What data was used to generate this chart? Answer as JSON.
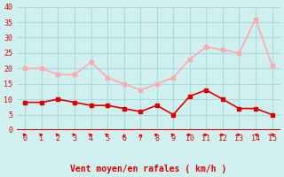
{
  "x": [
    0,
    1,
    2,
    3,
    4,
    5,
    6,
    7,
    8,
    9,
    10,
    11,
    12,
    13,
    14,
    15
  ],
  "wind_avg": [
    9,
    9,
    10,
    9,
    8,
    8,
    7,
    6,
    8,
    5,
    11,
    13,
    10,
    7,
    7,
    5
  ],
  "wind_gust": [
    20,
    20,
    18,
    18,
    22,
    17,
    15,
    13,
    15,
    17,
    23,
    27,
    26,
    25,
    36,
    21
  ],
  "wind_dir_angles": [
    45,
    45,
    45,
    45,
    45,
    45,
    90,
    90,
    45,
    45,
    45,
    315,
    45,
    45,
    135,
    0
  ],
  "avg_color": "#e00000",
  "gust_color": "#ffaaaa",
  "bg_color": "#d0f0f0",
  "grid_color": "#aadddd",
  "xlabel": "Vent moyen/en rafales ( km/h )",
  "ylabel": "",
  "ylim": [
    0,
    40
  ],
  "yticks": [
    0,
    5,
    10,
    15,
    20,
    25,
    30,
    35,
    40
  ],
  "xlim": [
    -0.5,
    15.5
  ]
}
